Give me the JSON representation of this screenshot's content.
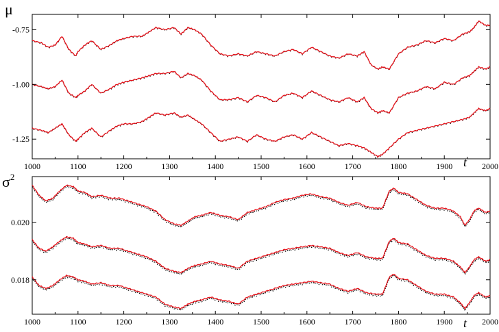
{
  "chart_data": [
    {
      "type": "line",
      "ylabel": "μ",
      "xlabel": "t",
      "xlim": [
        1000,
        2000
      ],
      "ylim": [
        -1.34,
        -0.68
      ],
      "x_ticks": [
        1000,
        1100,
        1200,
        1300,
        1400,
        1500,
        1600,
        1700,
        1800,
        1900,
        2000
      ],
      "x_tick_labels": [
        "1000",
        "1100",
        "1200",
        "1300",
        "1400",
        "1500",
        "1600",
        "1700",
        "1800",
        "1900",
        "2000"
      ],
      "y_ticks": [
        -0.75,
        -1.0,
        -1.25
      ],
      "y_tick_labels": [
        "-0.75",
        "-1.00",
        "-1.25"
      ],
      "grid": false,
      "colors": {
        "red": "#e8141c",
        "black": "#000000"
      },
      "curves": [
        {
          "x": [
            1000,
            1020,
            1035,
            1050,
            1065,
            1080,
            1095,
            1100,
            1115,
            1130,
            1150,
            1170,
            1185,
            1200,
            1220,
            1240,
            1255,
            1270,
            1290,
            1310,
            1325,
            1340,
            1355,
            1370,
            1390,
            1410,
            1430,
            1450,
            1470,
            1490,
            1510,
            1530,
            1550,
            1570,
            1590,
            1610,
            1630,
            1650,
            1670,
            1690,
            1710,
            1725,
            1740,
            1755,
            1765,
            1780,
            1800,
            1820,
            1840,
            1860,
            1880,
            1900,
            1920,
            1940,
            1955,
            1965,
            1975,
            1990,
            2000
          ],
          "y": [
            -0.8,
            -0.81,
            -0.83,
            -0.82,
            -0.78,
            -0.84,
            -0.87,
            -0.85,
            -0.82,
            -0.8,
            -0.84,
            -0.82,
            -0.8,
            -0.79,
            -0.78,
            -0.78,
            -0.76,
            -0.74,
            -0.75,
            -0.74,
            -0.77,
            -0.74,
            -0.75,
            -0.77,
            -0.82,
            -0.86,
            -0.87,
            -0.86,
            -0.87,
            -0.85,
            -0.86,
            -0.87,
            -0.85,
            -0.84,
            -0.86,
            -0.83,
            -0.85,
            -0.87,
            -0.88,
            -0.86,
            -0.87,
            -0.85,
            -0.91,
            -0.93,
            -0.92,
            -0.93,
            -0.86,
            -0.83,
            -0.82,
            -0.8,
            -0.81,
            -0.79,
            -0.8,
            -0.77,
            -0.76,
            -0.74,
            -0.71,
            -0.73,
            -0.73
          ]
        },
        {
          "x": [
            1000,
            1020,
            1035,
            1050,
            1065,
            1080,
            1095,
            1100,
            1115,
            1130,
            1150,
            1170,
            1185,
            1200,
            1220,
            1240,
            1255,
            1270,
            1290,
            1310,
            1325,
            1340,
            1355,
            1370,
            1390,
            1410,
            1430,
            1450,
            1470,
            1490,
            1510,
            1530,
            1550,
            1570,
            1590,
            1610,
            1630,
            1650,
            1670,
            1690,
            1710,
            1725,
            1740,
            1755,
            1765,
            1780,
            1800,
            1820,
            1840,
            1860,
            1880,
            1900,
            1920,
            1940,
            1955,
            1965,
            1975,
            1990,
            2000
          ],
          "y": [
            -1.0,
            -1.01,
            -1.02,
            -1.01,
            -0.98,
            -1.04,
            -1.06,
            -1.05,
            -1.03,
            -1.0,
            -1.04,
            -1.02,
            -1.0,
            -0.99,
            -0.98,
            -0.97,
            -0.96,
            -0.95,
            -0.95,
            -0.94,
            -0.97,
            -0.95,
            -0.96,
            -0.98,
            -1.03,
            -1.07,
            -1.07,
            -1.06,
            -1.08,
            -1.05,
            -1.06,
            -1.08,
            -1.05,
            -1.04,
            -1.06,
            -1.03,
            -1.05,
            -1.07,
            -1.08,
            -1.06,
            -1.08,
            -1.06,
            -1.11,
            -1.13,
            -1.12,
            -1.13,
            -1.06,
            -1.04,
            -1.03,
            -1.01,
            -1.02,
            -0.99,
            -1.0,
            -0.97,
            -0.96,
            -0.94,
            -0.92,
            -0.93,
            -0.92
          ]
        },
        {
          "x": [
            1000,
            1020,
            1035,
            1050,
            1065,
            1080,
            1095,
            1100,
            1115,
            1130,
            1150,
            1170,
            1185,
            1200,
            1220,
            1240,
            1255,
            1270,
            1290,
            1310,
            1325,
            1340,
            1355,
            1370,
            1390,
            1410,
            1430,
            1450,
            1470,
            1490,
            1510,
            1530,
            1550,
            1570,
            1590,
            1610,
            1630,
            1650,
            1670,
            1690,
            1710,
            1725,
            1740,
            1755,
            1765,
            1780,
            1800,
            1820,
            1840,
            1860,
            1880,
            1900,
            1920,
            1940,
            1955,
            1965,
            1975,
            1990,
            2000
          ],
          "y": [
            -1.2,
            -1.21,
            -1.22,
            -1.2,
            -1.18,
            -1.23,
            -1.26,
            -1.25,
            -1.22,
            -1.2,
            -1.24,
            -1.21,
            -1.19,
            -1.18,
            -1.18,
            -1.17,
            -1.15,
            -1.13,
            -1.14,
            -1.13,
            -1.15,
            -1.14,
            -1.16,
            -1.18,
            -1.22,
            -1.26,
            -1.25,
            -1.24,
            -1.26,
            -1.23,
            -1.25,
            -1.26,
            -1.24,
            -1.23,
            -1.25,
            -1.22,
            -1.24,
            -1.26,
            -1.28,
            -1.27,
            -1.28,
            -1.29,
            -1.31,
            -1.33,
            -1.32,
            -1.29,
            -1.25,
            -1.22,
            -1.21,
            -1.2,
            -1.19,
            -1.18,
            -1.17,
            -1.16,
            -1.15,
            -1.13,
            -1.11,
            -1.12,
            -1.11
          ]
        }
      ]
    },
    {
      "type": "line",
      "ylabel": "σ",
      "ylabel_sup": "2",
      "xlabel": "t",
      "xlim": [
        1000,
        2000
      ],
      "ylim": [
        0.0168,
        0.0216
      ],
      "x_ticks": [
        1000,
        1100,
        1200,
        1300,
        1400,
        1500,
        1600,
        1700,
        1800,
        1900,
        2000
      ],
      "x_tick_labels": [
        "1000",
        "1100",
        "1200",
        "1300",
        "1400",
        "1500",
        "1600",
        "1700",
        "1800",
        "1900",
        "2000"
      ],
      "y_ticks": [
        0.02,
        0.018
      ],
      "y_tick_labels": [
        "0.020",
        "0.018"
      ],
      "grid": false,
      "colors": {
        "red": "#e8141c",
        "black": "#000000"
      },
      "curves": [
        {
          "x": [
            1000,
            1015,
            1030,
            1045,
            1060,
            1075,
            1090,
            1100,
            1115,
            1130,
            1150,
            1170,
            1190,
            1210,
            1230,
            1250,
            1270,
            1290,
            1310,
            1325,
            1340,
            1355,
            1370,
            1390,
            1410,
            1430,
            1450,
            1470,
            1490,
            1510,
            1530,
            1550,
            1570,
            1590,
            1610,
            1630,
            1650,
            1670,
            1690,
            1710,
            1730,
            1750,
            1765,
            1780,
            1790,
            1800,
            1820,
            1840,
            1860,
            1880,
            1900,
            1920,
            1935,
            1945,
            1955,
            1965,
            1975,
            1990,
            2000
          ],
          "y": [
            0.0213,
            0.02095,
            0.02075,
            0.02085,
            0.0211,
            0.0213,
            0.02125,
            0.0211,
            0.02105,
            0.0209,
            0.02095,
            0.02085,
            0.02085,
            0.02075,
            0.02065,
            0.02055,
            0.0204,
            0.0201,
            0.01995,
            0.0199,
            0.02005,
            0.0202,
            0.02025,
            0.02035,
            0.02025,
            0.0202,
            0.0201,
            0.02035,
            0.02045,
            0.02055,
            0.0207,
            0.0208,
            0.02085,
            0.02095,
            0.021,
            0.0209,
            0.02085,
            0.0207,
            0.0206,
            0.0207,
            0.02055,
            0.0205,
            0.0205,
            0.0211,
            0.0212,
            0.02105,
            0.021,
            0.0208,
            0.0206,
            0.0205,
            0.0205,
            0.0204,
            0.0202,
            0.0199,
            0.0201,
            0.0204,
            0.0205,
            0.02035,
            0.0204
          ]
        },
        {
          "x": [
            1000,
            1015,
            1030,
            1045,
            1060,
            1075,
            1090,
            1100,
            1115,
            1130,
            1150,
            1170,
            1190,
            1210,
            1230,
            1250,
            1270,
            1290,
            1310,
            1325,
            1340,
            1355,
            1370,
            1390,
            1410,
            1430,
            1450,
            1470,
            1490,
            1510,
            1530,
            1550,
            1570,
            1590,
            1610,
            1630,
            1650,
            1670,
            1690,
            1710,
            1730,
            1750,
            1765,
            1780,
            1790,
            1800,
            1820,
            1840,
            1860,
            1880,
            1900,
            1920,
            1935,
            1945,
            1955,
            1965,
            1975,
            1990,
            2000
          ],
          "y": [
            0.0194,
            0.0191,
            0.019,
            0.01915,
            0.01935,
            0.0195,
            0.01945,
            0.0193,
            0.01925,
            0.01915,
            0.0192,
            0.0191,
            0.0191,
            0.019,
            0.0189,
            0.0188,
            0.01865,
            0.0184,
            0.0183,
            0.01825,
            0.0184,
            0.0185,
            0.01855,
            0.01865,
            0.01855,
            0.0185,
            0.0184,
            0.01865,
            0.01875,
            0.01885,
            0.01895,
            0.01905,
            0.0191,
            0.01915,
            0.0192,
            0.01915,
            0.0191,
            0.01895,
            0.01885,
            0.01895,
            0.0188,
            0.01875,
            0.01875,
            0.01935,
            0.01945,
            0.0193,
            0.01925,
            0.01905,
            0.01885,
            0.01875,
            0.01875,
            0.01865,
            0.01845,
            0.01825,
            0.01845,
            0.0187,
            0.0188,
            0.01865,
            0.0187
          ]
        },
        {
          "x": [
            1000,
            1015,
            1030,
            1045,
            1060,
            1075,
            1090,
            1100,
            1115,
            1130,
            1150,
            1170,
            1190,
            1210,
            1230,
            1250,
            1270,
            1290,
            1310,
            1325,
            1340,
            1355,
            1370,
            1390,
            1410,
            1430,
            1450,
            1470,
            1490,
            1510,
            1530,
            1550,
            1570,
            1590,
            1610,
            1630,
            1650,
            1670,
            1690,
            1710,
            1730,
            1750,
            1765,
            1780,
            1790,
            1800,
            1820,
            1840,
            1860,
            1880,
            1900,
            1920,
            1935,
            1945,
            1955,
            1965,
            1975,
            1990,
            2000
          ],
          "y": [
            0.0181,
            0.0178,
            0.0177,
            0.0178,
            0.018,
            0.01815,
            0.0181,
            0.018,
            0.01795,
            0.01785,
            0.0179,
            0.0178,
            0.0178,
            0.0177,
            0.0176,
            0.0175,
            0.0174,
            0.01715,
            0.01705,
            0.017,
            0.01715,
            0.01725,
            0.0173,
            0.0174,
            0.0173,
            0.01725,
            0.01715,
            0.0174,
            0.0175,
            0.0176,
            0.0177,
            0.0178,
            0.01785,
            0.0179,
            0.01795,
            0.0179,
            0.01785,
            0.0177,
            0.0176,
            0.0177,
            0.01755,
            0.0175,
            0.0175,
            0.0181,
            0.0182,
            0.01805,
            0.018,
            0.0178,
            0.0176,
            0.0175,
            0.0175,
            0.0174,
            0.0172,
            0.017,
            0.0172,
            0.01745,
            0.01755,
            0.0174,
            0.01745
          ]
        }
      ]
    }
  ]
}
